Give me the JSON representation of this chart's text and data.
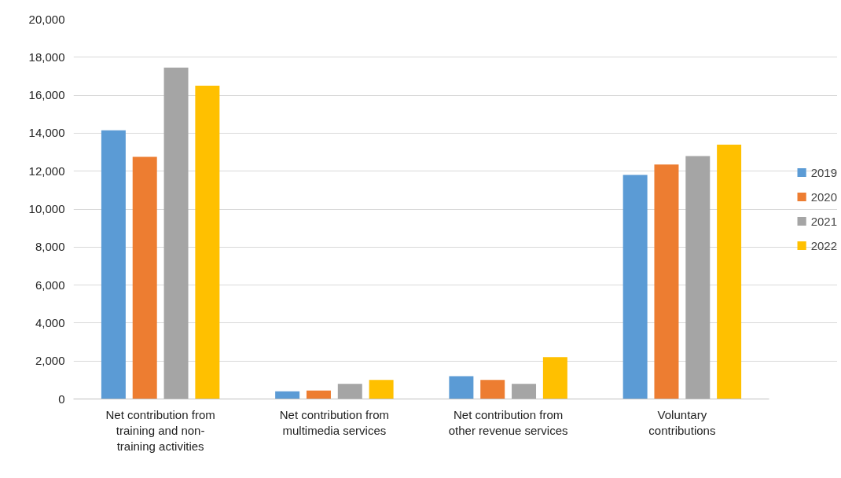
{
  "chart_data": {
    "type": "bar",
    "categories": [
      "Net contribution from training and non-training activities",
      "Net contribution from multimedia services",
      "Net contribution from other revenue services",
      "Voluntary contributions"
    ],
    "series": [
      {
        "name": "2019",
        "color": "#5b9bd5",
        "values": [
          14150,
          400,
          1200,
          11800
        ]
      },
      {
        "name": "2020",
        "color": "#ed7d31",
        "values": [
          12750,
          450,
          1000,
          12350
        ]
      },
      {
        "name": "2021",
        "color": "#a5a5a5",
        "values": [
          17450,
          800,
          800,
          12800
        ]
      },
      {
        "name": "2022",
        "color": "#ffc000",
        "values": [
          16500,
          1000,
          2200,
          13400
        ]
      }
    ],
    "ylim": [
      0,
      20000
    ],
    "yticks": [
      {
        "value": 0,
        "label": "0"
      },
      {
        "value": 2000,
        "label": "2,000"
      },
      {
        "value": 4000,
        "label": "4,000"
      },
      {
        "value": 6000,
        "label": "6,000"
      },
      {
        "value": 8000,
        "label": "8,000"
      },
      {
        "value": 10000,
        "label": "10,000"
      },
      {
        "value": 12000,
        "label": "12,000"
      },
      {
        "value": 14000,
        "label": "14,000"
      },
      {
        "value": 16000,
        "label": "16,000"
      },
      {
        "value": 18000,
        "label": "18,000"
      },
      {
        "value": 20000,
        "label": "20,000"
      }
    ],
    "grid": "y",
    "legend": "right"
  }
}
